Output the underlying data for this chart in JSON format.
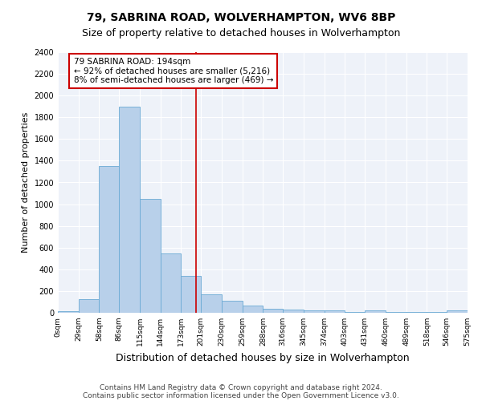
{
  "title": "79, SABRINA ROAD, WOLVERHAMPTON, WV6 8BP",
  "subtitle": "Size of property relative to detached houses in Wolverhampton",
  "xlabel": "Distribution of detached houses by size in Wolverhampton",
  "ylabel": "Number of detached properties",
  "bin_edges": [
    0,
    29,
    58,
    86,
    115,
    144,
    173,
    201,
    230,
    259,
    288,
    316,
    345,
    374,
    403,
    431,
    460,
    489,
    518,
    546,
    575
  ],
  "bar_heights": [
    15,
    125,
    1350,
    1900,
    1050,
    545,
    340,
    170,
    110,
    65,
    40,
    30,
    25,
    20,
    10,
    25,
    5,
    5,
    5,
    20
  ],
  "bar_color": "#b8d0ea",
  "bar_edge_color": "#6aaad4",
  "property_size": 194,
  "red_line_color": "#cc0000",
  "annotation_line1": "79 SABRINA ROAD: 194sqm",
  "annotation_line2": "← 92% of detached houses are smaller (5,216)",
  "annotation_line3": "8% of semi-detached houses are larger (469) →",
  "annotation_box_color": "#ffffff",
  "annotation_box_edge_color": "#cc0000",
  "ylim": [
    0,
    2400
  ],
  "yticks": [
    0,
    200,
    400,
    600,
    800,
    1000,
    1200,
    1400,
    1600,
    1800,
    2000,
    2200,
    2400
  ],
  "tick_labels": [
    "0sqm",
    "29sqm",
    "58sqm",
    "86sqm",
    "115sqm",
    "144sqm",
    "173sqm",
    "201sqm",
    "230sqm",
    "259sqm",
    "288sqm",
    "316sqm",
    "345sqm",
    "374sqm",
    "403sqm",
    "431sqm",
    "460sqm",
    "489sqm",
    "518sqm",
    "546sqm",
    "575sqm"
  ],
  "background_color": "#eef2f9",
  "grid_color": "#ffffff",
  "footer_line1": "Contains HM Land Registry data © Crown copyright and database right 2024.",
  "footer_line2": "Contains public sector information licensed under the Open Government Licence v3.0.",
  "title_fontsize": 10,
  "subtitle_fontsize": 9,
  "xlabel_fontsize": 9,
  "ylabel_fontsize": 8,
  "tick_fontsize": 6.5,
  "ytick_fontsize": 7,
  "annotation_fontsize": 7.5,
  "footer_fontsize": 6.5
}
